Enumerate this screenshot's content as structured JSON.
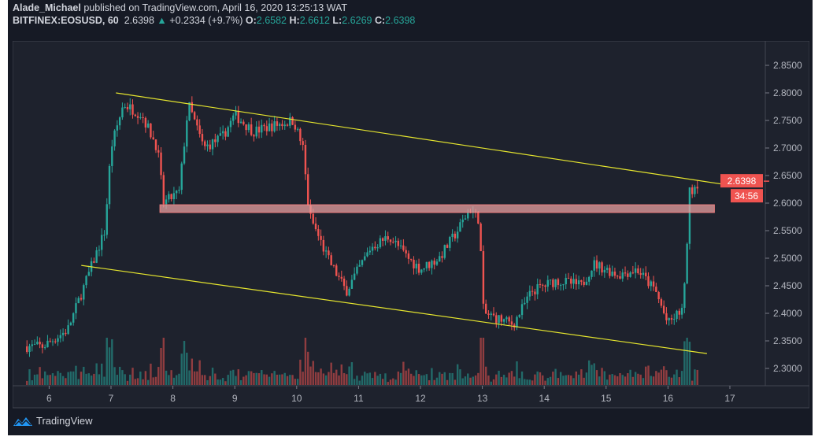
{
  "header": {
    "author": "Alade_Michael",
    "published_text": "published on TradingView.com, April 16, 2020 13:25:13 WAT",
    "symbol": "BITFINEX:EOSUSD, 60",
    "last_price": "2.6398",
    "change": "+0.2334 (+9.7%)",
    "open_label": "O:",
    "open": "2.6582",
    "high_label": "H:",
    "high": "2.6612",
    "low_label": "L:",
    "low": "2.6269",
    "close_label": "C:",
    "close": "2.6398"
  },
  "price_axis": {
    "ticks": [
      "2.8500",
      "2.8000",
      "2.7500",
      "2.7000",
      "2.6500",
      "2.6000",
      "2.5500",
      "2.5000",
      "2.4500",
      "2.4000",
      "2.3500",
      "2.3000"
    ],
    "current_price_label": "2.6398",
    "countdown_label": "34:56"
  },
  "time_axis": {
    "ticks": [
      "6",
      "7",
      "8",
      "9",
      "10",
      "11",
      "12",
      "13",
      "14",
      "15",
      "16",
      "17"
    ]
  },
  "footer": {
    "brand": "TradingView"
  },
  "colors": {
    "up": "#26a69a",
    "down": "#ef5350",
    "trendline": "#e5e52e",
    "zone": "#e8a0a0",
    "background": "#1e222d"
  },
  "chart_data": {
    "type": "candlestick",
    "interval": "60",
    "ylim": [
      2.28,
      2.87
    ],
    "xlim_day": [
      5.6,
      17.75
    ],
    "price_path": [
      [
        5.6,
        2.34
      ],
      [
        5.9,
        2.34
      ],
      [
        6.3,
        2.37
      ],
      [
        6.6,
        2.46
      ],
      [
        6.9,
        2.55
      ],
      [
        7.0,
        2.7
      ],
      [
        7.2,
        2.78
      ],
      [
        7.5,
        2.76
      ],
      [
        7.75,
        2.7
      ],
      [
        7.85,
        2.6
      ],
      [
        8.1,
        2.62
      ],
      [
        8.25,
        2.78
      ],
      [
        8.5,
        2.7
      ],
      [
        8.8,
        2.72
      ],
      [
        9.0,
        2.76
      ],
      [
        9.3,
        2.73
      ],
      [
        9.6,
        2.74
      ],
      [
        9.95,
        2.75
      ],
      [
        10.1,
        2.7
      ],
      [
        10.2,
        2.58
      ],
      [
        10.5,
        2.5
      ],
      [
        10.8,
        2.44
      ],
      [
        11.2,
        2.52
      ],
      [
        11.5,
        2.54
      ],
      [
        11.8,
        2.5
      ],
      [
        12.0,
        2.48
      ],
      [
        12.3,
        2.5
      ],
      [
        12.6,
        2.55
      ],
      [
        12.8,
        2.59
      ],
      [
        12.95,
        2.57
      ],
      [
        13.02,
        2.4
      ],
      [
        13.5,
        2.38
      ],
      [
        13.8,
        2.44
      ],
      [
        14.2,
        2.46
      ],
      [
        14.6,
        2.45
      ],
      [
        14.8,
        2.49
      ],
      [
        15.2,
        2.47
      ],
      [
        15.5,
        2.48
      ],
      [
        15.8,
        2.44
      ],
      [
        16.0,
        2.38
      ],
      [
        16.25,
        2.41
      ],
      [
        16.35,
        2.62
      ],
      [
        16.5,
        2.6398
      ]
    ],
    "trendlines": [
      {
        "from": [
          7.08,
          2.8
        ],
        "to": [
          17.08,
          2.631
        ]
      },
      {
        "from": [
          6.52,
          2.487
        ],
        "to": [
          16.63,
          2.327
        ]
      }
    ],
    "resistance_zone": {
      "day_range": [
        7.79,
        16.75
      ],
      "price_range": [
        2.583,
        2.597
      ]
    }
  }
}
